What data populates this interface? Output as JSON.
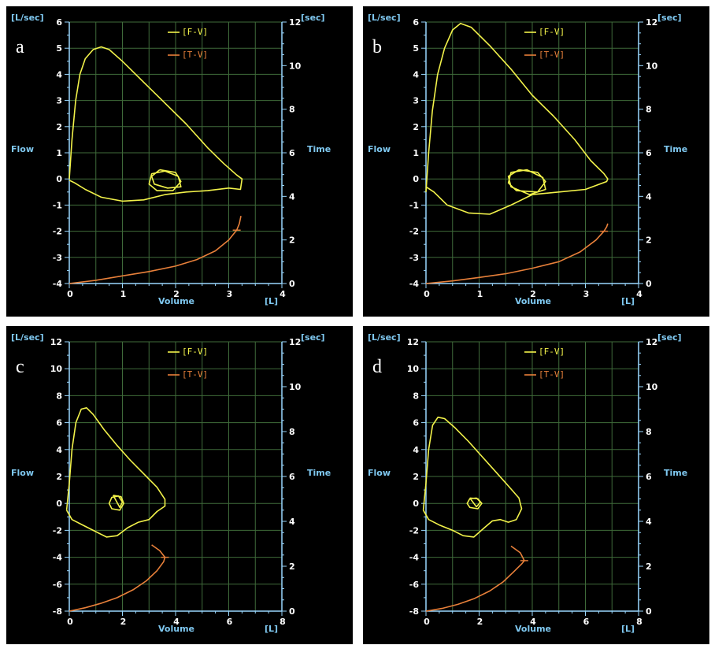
{
  "colors": {
    "background": "#000000",
    "grid": "#3f6b3a",
    "axis": "#9ad8ff",
    "label": "#7fc8f0",
    "fv": "#f2f24a",
    "tv": "#e8803a"
  },
  "panels": [
    {
      "letter": "a",
      "legend": {
        "fv": "[F-V]",
        "tv": "[T-V]"
      },
      "labels": {
        "flow_unit": "[L/sec]",
        "time_unit": "[sec]",
        "flow": "Flow",
        "time": "Time",
        "volume": "Volume",
        "volume_unit": "[L]"
      }
    },
    {
      "letter": "b",
      "legend": {
        "fv": "[F-V]",
        "tv": "[T-V]"
      },
      "labels": {
        "flow_unit": "[L/sec]",
        "time_unit": "[sec]",
        "flow": "Flow",
        "time": "Time",
        "volume": "Volume",
        "volume_unit": "[L]"
      }
    },
    {
      "letter": "c",
      "legend": {
        "fv": "[F-V]",
        "tv": "[T-V]"
      },
      "labels": {
        "flow_unit": "[L/sec]",
        "time_unit": "[sec]",
        "flow": "Flow",
        "time": "Time",
        "volume": "Volume",
        "volume_unit": "[L]"
      }
    },
    {
      "letter": "d",
      "legend": {
        "fv": "[F-V]",
        "tv": "[T-V]"
      },
      "labels": {
        "flow_unit": "[L/sec]",
        "time_unit": "[sec]",
        "flow": "Flow",
        "time": "Time",
        "volume": "Volume",
        "volume_unit": "[L]"
      }
    }
  ],
  "chart_data": [
    {
      "type": "line",
      "panel": "a",
      "xlabel": "Volume",
      "ylabel": "Flow",
      "y2label": "Time",
      "xlim": [
        0,
        4
      ],
      "ylim": [
        -4,
        6
      ],
      "y2lim": [
        0,
        12
      ],
      "xticks": [
        0,
        1,
        2,
        3,
        4
      ],
      "yticks": [
        -4,
        -3,
        -2,
        -1,
        0,
        1,
        2,
        3,
        4,
        5,
        6
      ],
      "y2ticks": [
        0,
        2,
        4,
        6,
        8,
        10,
        12
      ],
      "series": [
        {
          "name": "[F-V]",
          "axis": "left",
          "x": [
            0.0,
            0.05,
            0.12,
            0.2,
            0.3,
            0.45,
            0.6,
            0.75,
            1.0,
            1.4,
            1.8,
            2.2,
            2.6,
            2.9,
            3.15,
            3.25,
            3.22,
            3.0,
            2.6,
            2.2,
            1.8,
            1.4,
            1.0,
            0.6,
            0.3,
            0.1,
            0.0
          ],
          "y": [
            0.0,
            1.5,
            3.0,
            4.0,
            4.6,
            4.95,
            5.05,
            4.95,
            4.5,
            3.7,
            2.9,
            2.1,
            1.2,
            0.6,
            0.15,
            0.0,
            -0.4,
            -0.35,
            -0.45,
            -0.5,
            -0.6,
            -0.8,
            -0.85,
            -0.7,
            -0.4,
            -0.15,
            -0.05
          ]
        },
        {
          "name": "loop",
          "axis": "left",
          "x": [
            1.7,
            2.0,
            2.1,
            1.95,
            1.65,
            1.5,
            1.55,
            1.8,
            2.05,
            2.1,
            1.85,
            1.6,
            1.55,
            1.7
          ],
          "y": [
            0.35,
            0.25,
            -0.1,
            -0.45,
            -0.45,
            -0.2,
            0.2,
            0.3,
            0.1,
            -0.3,
            -0.35,
            -0.2,
            0.1,
            0.35
          ]
        },
        {
          "name": "[T-V]",
          "axis": "right",
          "x": [
            0.0,
            0.5,
            1.0,
            1.5,
            2.0,
            2.4,
            2.75,
            3.0,
            3.15,
            3.2,
            3.23
          ],
          "y": [
            0.0,
            0.15,
            0.35,
            0.55,
            0.8,
            1.1,
            1.5,
            2.0,
            2.45,
            2.75,
            3.1
          ]
        }
      ]
    },
    {
      "type": "line",
      "panel": "b",
      "xlabel": "Volume",
      "ylabel": "Flow",
      "y2label": "Time",
      "xlim": [
        0,
        4
      ],
      "ylim": [
        -4,
        6
      ],
      "y2lim": [
        0,
        12
      ],
      "xticks": [
        0,
        1,
        2,
        3,
        4
      ],
      "yticks": [
        -4,
        -3,
        -2,
        -1,
        0,
        1,
        2,
        3,
        4,
        5,
        6
      ],
      "y2ticks": [
        0,
        2,
        4,
        6,
        8,
        10,
        12
      ],
      "series": [
        {
          "name": "[F-V]",
          "axis": "left",
          "x": [
            0.0,
            0.05,
            0.12,
            0.22,
            0.35,
            0.5,
            0.65,
            0.85,
            1.2,
            1.6,
            2.0,
            2.4,
            2.8,
            3.1,
            3.35,
            3.42,
            3.4,
            3.0,
            2.5,
            2.0,
            1.6,
            1.2,
            0.8,
            0.4,
            0.15,
            0.0
          ],
          "y": [
            -0.5,
            1.0,
            2.6,
            4.0,
            5.0,
            5.7,
            5.95,
            5.8,
            5.1,
            4.2,
            3.2,
            2.4,
            1.5,
            0.7,
            0.2,
            0.0,
            -0.1,
            -0.4,
            -0.5,
            -0.6,
            -1.0,
            -1.35,
            -1.3,
            -1.0,
            -0.5,
            -0.3
          ]
        },
        {
          "name": "loop",
          "axis": "left",
          "x": [
            1.75,
            2.1,
            2.25,
            2.1,
            1.7,
            1.55,
            1.6,
            1.9,
            2.2,
            2.25,
            1.95,
            1.6,
            1.55,
            1.75
          ],
          "y": [
            0.35,
            0.25,
            -0.1,
            -0.5,
            -0.45,
            -0.15,
            0.25,
            0.35,
            0.05,
            -0.4,
            -0.6,
            -0.3,
            0.1,
            0.35
          ]
        },
        {
          "name": "[T-V]",
          "axis": "right",
          "x": [
            0.0,
            0.5,
            1.0,
            1.5,
            2.0,
            2.5,
            2.9,
            3.2,
            3.35,
            3.4,
            3.42
          ],
          "y": [
            0.0,
            0.12,
            0.28,
            0.45,
            0.7,
            1.0,
            1.45,
            2.0,
            2.4,
            2.6,
            2.75
          ]
        }
      ]
    },
    {
      "type": "line",
      "panel": "c",
      "xlabel": "Volume",
      "ylabel": "Flow",
      "y2label": "Time",
      "xlim": [
        0,
        8
      ],
      "ylim": [
        -8,
        12
      ],
      "y2lim": [
        0,
        12
      ],
      "xticks": [
        0,
        2,
        4,
        6,
        8
      ],
      "yticks": [
        -8,
        -6,
        -4,
        -2,
        0,
        2,
        4,
        6,
        8,
        10,
        12
      ],
      "y2ticks": [
        0,
        2,
        4,
        6,
        8,
        10,
        12
      ],
      "series": [
        {
          "name": "[F-V]",
          "axis": "left",
          "x": [
            -0.1,
            0.0,
            0.1,
            0.25,
            0.45,
            0.65,
            0.9,
            1.3,
            1.8,
            2.3,
            2.8,
            3.3,
            3.6,
            3.6,
            3.3,
            3.0,
            2.6,
            2.2,
            1.8,
            1.4,
            1.0,
            0.5,
            0.1,
            -0.1
          ],
          "y": [
            -0.5,
            1.5,
            4.0,
            6.0,
            7.0,
            7.1,
            6.6,
            5.5,
            4.3,
            3.2,
            2.2,
            1.2,
            0.3,
            -0.2,
            -0.6,
            -1.2,
            -1.4,
            -1.8,
            -2.4,
            -2.5,
            -2.1,
            -1.6,
            -1.2,
            -0.5
          ]
        },
        {
          "name": "loop",
          "axis": "left",
          "x": [
            1.65,
            1.95,
            2.05,
            1.9,
            1.6,
            1.5,
            1.6,
            1.85,
            2.0,
            1.9,
            1.65
          ],
          "y": [
            0.6,
            0.5,
            0.0,
            -0.5,
            -0.4,
            0.0,
            0.45,
            0.55,
            0.1,
            -0.3,
            0.6
          ]
        },
        {
          "name": "[T-V]",
          "axis": "right",
          "x": [
            0.0,
            0.6,
            1.2,
            1.8,
            2.4,
            2.9,
            3.3,
            3.55,
            3.6,
            3.4,
            3.1
          ],
          "y": [
            0.0,
            0.15,
            0.35,
            0.6,
            0.95,
            1.35,
            1.8,
            2.2,
            2.4,
            2.7,
            2.95
          ]
        }
      ]
    },
    {
      "type": "line",
      "panel": "d",
      "xlabel": "Volume",
      "ylabel": "Flow",
      "y2label": "Time",
      "xlim": [
        0,
        8
      ],
      "ylim": [
        -8,
        12
      ],
      "y2lim": [
        0,
        12
      ],
      "xticks": [
        0,
        2,
        4,
        6,
        8
      ],
      "yticks": [
        -8,
        -6,
        -4,
        -2,
        0,
        2,
        4,
        6,
        8,
        10,
        12
      ],
      "y2ticks": [
        0,
        2,
        4,
        6,
        8,
        10,
        12
      ],
      "series": [
        {
          "name": "[F-V]",
          "axis": "left",
          "x": [
            -0.1,
            0.0,
            0.1,
            0.25,
            0.45,
            0.7,
            1.1,
            1.6,
            2.1,
            2.6,
            3.1,
            3.5,
            3.6,
            3.4,
            3.1,
            2.8,
            2.5,
            2.2,
            1.8,
            1.4,
            1.0,
            0.5,
            0.1,
            -0.1
          ],
          "y": [
            -0.5,
            1.5,
            4.0,
            5.8,
            6.4,
            6.3,
            5.6,
            4.6,
            3.5,
            2.4,
            1.3,
            0.4,
            -0.4,
            -1.2,
            -1.4,
            -1.2,
            -1.3,
            -1.8,
            -2.5,
            -2.4,
            -2.0,
            -1.6,
            -1.2,
            -0.5
          ]
        },
        {
          "name": "loop",
          "axis": "left",
          "x": [
            1.65,
            1.95,
            2.1,
            1.95,
            1.65,
            1.55,
            1.65,
            1.9,
            2.05,
            1.9,
            1.65
          ],
          "y": [
            0.4,
            0.35,
            0.0,
            -0.4,
            -0.3,
            0.0,
            0.35,
            0.4,
            0.1,
            -0.25,
            0.4
          ]
        },
        {
          "name": "[T-V]",
          "axis": "right",
          "x": [
            0.0,
            0.6,
            1.2,
            1.8,
            2.4,
            2.9,
            3.3,
            3.6,
            3.7,
            3.55,
            3.2
          ],
          "y": [
            0.0,
            0.12,
            0.3,
            0.55,
            0.9,
            1.3,
            1.75,
            2.1,
            2.25,
            2.6,
            2.9
          ]
        }
      ]
    }
  ]
}
